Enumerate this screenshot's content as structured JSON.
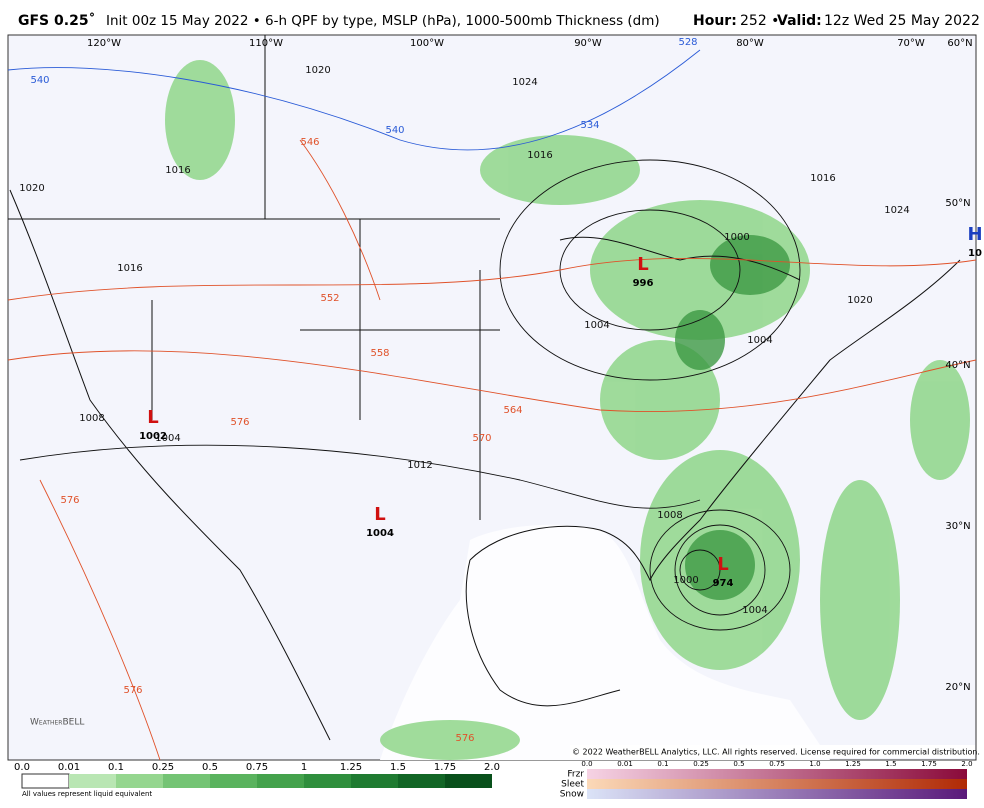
{
  "header": {
    "title_bold": "GFS 0.25˚",
    "title_rest": "Init 00z 15 May 2022 • 6-h QPF by type, MSLP (hPa), 1000-500mb Thickness (dm)",
    "hour_label": "Hour:",
    "hour_value": "252 •",
    "valid_label": "Valid:",
    "valid_value": "12z Wed 25 May 2022"
  },
  "map": {
    "lon_labels": [
      "120°W",
      "110°W",
      "100°W",
      "90°W",
      "80°W",
      "70°W",
      "60°N"
    ],
    "lat_labels": [
      "50°N",
      "40°N",
      "30°N",
      "20°N"
    ],
    "isobar_labels": [
      "1020",
      "1024",
      "1016",
      "1016",
      "1020",
      "1016",
      "1000",
      "1004",
      "1004",
      "1008",
      "1012",
      "1008",
      "1000",
      "1004",
      "1016",
      "1024",
      "1020",
      "1004"
    ],
    "thickness_labels": [
      "540",
      "528",
      "534",
      "540",
      "546",
      "552",
      "558",
      "564",
      "570",
      "576",
      "576",
      "576",
      "576"
    ],
    "pressure_centers": [
      {
        "symbol": "L",
        "value": "996"
      },
      {
        "symbol": "L",
        "value": "1002"
      },
      {
        "symbol": "L",
        "value": "1004"
      },
      {
        "symbol": "L",
        "value": "974"
      },
      {
        "symbol": "H",
        "value": "10"
      }
    ],
    "logo": "WeatherBELL",
    "copyright": "© 2022 WeatherBELL Analytics, LLC. All rights reserved. License required for commercial distribution."
  },
  "legend": {
    "qpf_labels": [
      "0.0",
      "0.01",
      "0.1",
      "0.25",
      "0.5",
      "0.75",
      "1",
      "1.25",
      "1.5",
      "1.75",
      "2.0"
    ],
    "qpf_note": "All values represent liquid equivalent",
    "type_labels": [
      "0.0",
      "0.01",
      "0.1",
      "0.25",
      "0.5",
      "0.75",
      "1.0",
      "1.25",
      "1.5",
      "1.75",
      "2.0"
    ],
    "types": [
      "Frzr",
      "Sleet",
      "Snow"
    ]
  }
}
